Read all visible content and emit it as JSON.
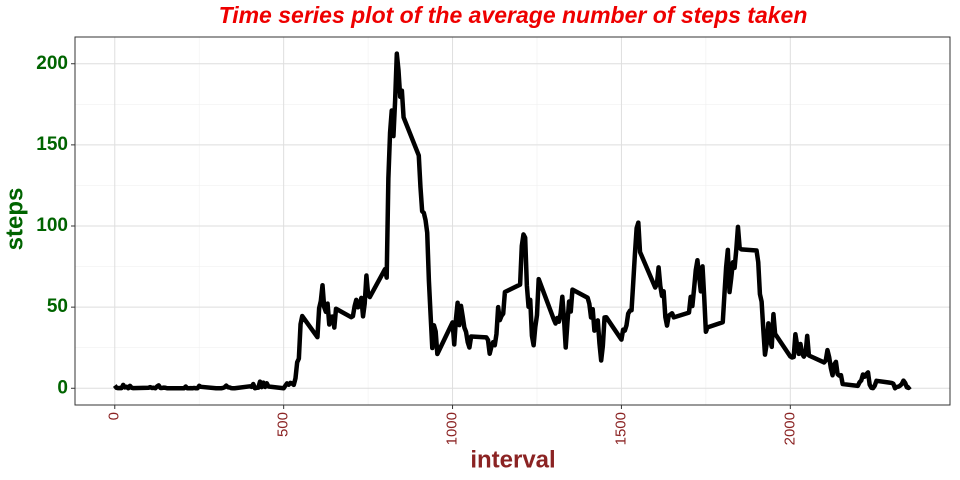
{
  "chart_data": {
    "type": "line",
    "title": "Time series plot of the average number of steps taken",
    "x_label": "interval",
    "y_label": "steps",
    "xlim": [
      -117.75,
      2472.75
    ],
    "ylim": [
      -10.31,
      216.48
    ],
    "xticks": [
      0,
      500,
      1000,
      1500,
      2000
    ],
    "yticks": [
      0,
      50,
      100,
      150,
      200
    ],
    "grid": true,
    "x": [
      0,
      5,
      10,
      15,
      20,
      25,
      30,
      35,
      40,
      45,
      50,
      55,
      100,
      105,
      110,
      115,
      120,
      125,
      130,
      135,
      140,
      145,
      150,
      155,
      200,
      205,
      210,
      215,
      220,
      225,
      230,
      235,
      240,
      245,
      250,
      255,
      300,
      305,
      310,
      315,
      320,
      325,
      330,
      335,
      340,
      345,
      350,
      355,
      400,
      405,
      410,
      415,
      420,
      425,
      430,
      435,
      440,
      445,
      450,
      455,
      500,
      505,
      510,
      515,
      520,
      525,
      530,
      535,
      540,
      545,
      550,
      555,
      600,
      605,
      610,
      615,
      620,
      625,
      630,
      635,
      640,
      645,
      650,
      655,
      700,
      705,
      710,
      715,
      720,
      725,
      730,
      735,
      740,
      745,
      750,
      755,
      800,
      805,
      810,
      815,
      820,
      825,
      830,
      835,
      840,
      845,
      850,
      855,
      900,
      905,
      910,
      915,
      920,
      925,
      930,
      935,
      940,
      945,
      950,
      955,
      1000,
      1005,
      1010,
      1015,
      1020,
      1025,
      1030,
      1035,
      1040,
      1045,
      1050,
      1055,
      1100,
      1105,
      1110,
      1115,
      1120,
      1125,
      1130,
      1135,
      1140,
      1145,
      1150,
      1155,
      1200,
      1205,
      1210,
      1215,
      1220,
      1225,
      1230,
      1235,
      1240,
      1245,
      1250,
      1255,
      1300,
      1305,
      1310,
      1315,
      1320,
      1325,
      1330,
      1335,
      1340,
      1345,
      1350,
      1355,
      1400,
      1405,
      1410,
      1415,
      1420,
      1425,
      1430,
      1435,
      1440,
      1445,
      1450,
      1455,
      1500,
      1505,
      1510,
      1515,
      1520,
      1525,
      1530,
      1535,
      1540,
      1545,
      1550,
      1555,
      1600,
      1605,
      1610,
      1615,
      1620,
      1625,
      1630,
      1635,
      1640,
      1645,
      1650,
      1655,
      1700,
      1705,
      1710,
      1715,
      1720,
      1725,
      1730,
      1735,
      1740,
      1745,
      1750,
      1755,
      1800,
      1805,
      1810,
      1815,
      1820,
      1825,
      1830,
      1835,
      1840,
      1845,
      1850,
      1855,
      1900,
      1905,
      1910,
      1915,
      1920,
      1925,
      1930,
      1935,
      1940,
      1945,
      1950,
      1955,
      2000,
      2005,
      2010,
      2015,
      2020,
      2025,
      2030,
      2035,
      2040,
      2045,
      2050,
      2055,
      2100,
      2105,
      2110,
      2115,
      2120,
      2125,
      2130,
      2135,
      2140,
      2145,
      2150,
      2155,
      2200,
      2205,
      2210,
      2215,
      2220,
      2225,
      2230,
      2235,
      2240,
      2245,
      2250,
      2255,
      2300,
      2305,
      2310,
      2315,
      2320,
      2325,
      2330,
      2335,
      2340,
      2345,
      2350,
      2355
    ],
    "series": [
      {
        "name": "steps",
        "color": "#000000",
        "values": [
          1.7,
          0.3,
          0.1,
          0.2,
          0.1,
          2.1,
          0.5,
          0.9,
          0,
          1.5,
          0.3,
          0.1,
          0.3,
          0.7,
          0.2,
          0.3,
          0,
          1.1,
          1.8,
          0.2,
          0.2,
          0.4,
          0.3,
          0,
          0,
          0,
          1.1,
          0,
          0,
          0.1,
          0,
          0.2,
          0,
          0,
          1.5,
          0.9,
          0,
          0,
          0,
          0,
          0.2,
          0.6,
          1.6,
          0.6,
          0.5,
          0.1,
          0,
          0,
          1.2,
          0.9,
          2.6,
          0,
          0.3,
          0.4,
          4.1,
          0.7,
          3.5,
          0.8,
          3.1,
          1.1,
          0,
          1.6,
          3,
          2.2,
          3.3,
          3,
          2.1,
          6.1,
          16,
          18.3,
          39.5,
          44.5,
          31.5,
          49.3,
          53.8,
          63.5,
          50,
          47.1,
          52.2,
          39.3,
          44,
          44.2,
          37.4,
          49,
          43.8,
          44.4,
          50.5,
          54.5,
          49.9,
          51,
          55.7,
          44.3,
          52.3,
          69.5,
          57.8,
          56.2,
          73.4,
          68.2,
          129.4,
          157.5,
          171.2,
          155.4,
          177.3,
          206.2,
          195.9,
          179.6,
          183.4,
          167,
          143.5,
          124,
          109.1,
          108.1,
          103.7,
          95.9,
          66.2,
          45.2,
          24.8,
          38.8,
          35,
          21.1,
          40.6,
          27,
          42.4,
          52.7,
          38.9,
          50.8,
          44.3,
          37.4,
          34.7,
          28.3,
          25.1,
          31.9,
          31.4,
          29.7,
          21.3,
          25.5,
          28.4,
          26.5,
          33.4,
          50,
          42,
          44.6,
          46,
          59.3,
          63.9,
          87.7,
          94.8,
          92.8,
          63.4,
          50.2,
          54.5,
          32.4,
          26.5,
          37.7,
          45.1,
          67.3,
          42.3,
          39.9,
          43.3,
          41,
          46.2,
          56.4,
          42.8,
          25.1,
          40,
          53.5,
          47.3,
          60.8,
          55.8,
          52,
          43.6,
          48.7,
          35.5,
          37.5,
          41.8,
          27.5,
          17.1,
          26.1,
          43.6,
          43.8,
          30,
          36.1,
          35.5,
          38.8,
          46,
          47.8,
          48.1,
          65.3,
          82.9,
          98.7,
          102.1,
          84,
          62.1,
          64.1,
          74.5,
          63.2,
          56.9,
          59.8,
          43.9,
          38.6,
          44.7,
          45.5,
          46.2,
          43.7,
          46.6,
          56.3,
          50.7,
          61.2,
          72.7,
          78.9,
          68.9,
          59.7,
          75.1,
          56.5,
          34.8,
          37.5,
          40.7,
          58,
          74.7,
          85.3,
          59.3,
          67.8,
          77.7,
          74.2,
          85.3,
          99.5,
          86.6,
          85.6,
          84.9,
          77.8,
          58,
          53.4,
          36.3,
          20.7,
          27.4,
          40,
          30.2,
          25.5,
          45.7,
          33.5,
          19.6,
          19,
          19.3,
          33.3,
          26.8,
          21.2,
          27.3,
          21.3,
          19.5,
          21.3,
          32.3,
          20.2,
          15.9,
          17.2,
          23.5,
          19.2,
          12.5,
          8,
          14.7,
          16.3,
          8.7,
          7.8,
          8.1,
          2.6,
          1.5,
          3.7,
          4.8,
          8.5,
          7.1,
          8.7,
          9.8,
          2.2,
          0.3,
          0.1,
          1.6,
          4.6,
          3.3,
          2.8,
          0,
          0.8,
          1,
          1.6,
          2.6,
          4.7,
          3.3,
          0.6,
          0.2,
          1.1
        ]
      }
    ]
  }
}
